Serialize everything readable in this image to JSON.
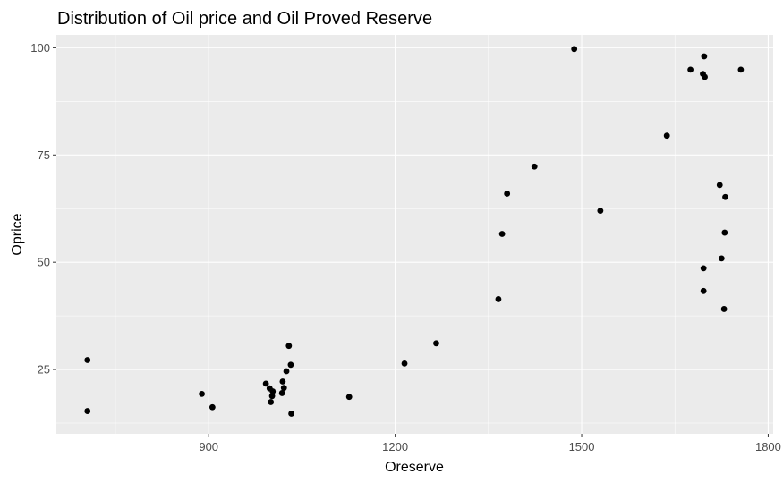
{
  "chart_data": {
    "type": "scatter",
    "title": "Distribution of Oil price and Oil Proved Reserve",
    "xlabel": "Oreserve",
    "ylabel": "Oprice",
    "xlim": [
      655,
      1808
    ],
    "ylim": [
      10,
      103
    ],
    "x_ticks": [
      900,
      1200,
      1500,
      1800
    ],
    "y_ticks": [
      25,
      50,
      75,
      100
    ],
    "x_minor": [
      750,
      1050,
      1350,
      1650
    ],
    "y_minor": [
      12.5,
      37.5,
      62.5,
      87.5
    ],
    "grid": true,
    "legend": "none",
    "point_color": "#000000",
    "panel_background": "#ebebeb",
    "grid_color": "#ffffff",
    "points": [
      {
        "x": 705,
        "y": 27.2
      },
      {
        "x": 705,
        "y": 15.3
      },
      {
        "x": 889,
        "y": 19.3
      },
      {
        "x": 906,
        "y": 16.2
      },
      {
        "x": 992,
        "y": 21.7
      },
      {
        "x": 998,
        "y": 20.6
      },
      {
        "x": 1000,
        "y": 17.4
      },
      {
        "x": 1002,
        "y": 18.8
      },
      {
        "x": 1003,
        "y": 19.9
      },
      {
        "x": 1018,
        "y": 19.5
      },
      {
        "x": 1019,
        "y": 22.2
      },
      {
        "x": 1021,
        "y": 20.7
      },
      {
        "x": 1025,
        "y": 24.6
      },
      {
        "x": 1029,
        "y": 30.5
      },
      {
        "x": 1032,
        "y": 26.1
      },
      {
        "x": 1033,
        "y": 14.7
      },
      {
        "x": 1126,
        "y": 18.6
      },
      {
        "x": 1215,
        "y": 26.4
      },
      {
        "x": 1266,
        "y": 31.1
      },
      {
        "x": 1366,
        "y": 41.4
      },
      {
        "x": 1372,
        "y": 56.6
      },
      {
        "x": 1380,
        "y": 66.0
      },
      {
        "x": 1424,
        "y": 72.3
      },
      {
        "x": 1488,
        "y": 99.7
      },
      {
        "x": 1530,
        "y": 62.0
      },
      {
        "x": 1637,
        "y": 79.5
      },
      {
        "x": 1675,
        "y": 94.9
      },
      {
        "x": 1695,
        "y": 93.9
      },
      {
        "x": 1697,
        "y": 98.0
      },
      {
        "x": 1698,
        "y": 93.2
      },
      {
        "x": 1696,
        "y": 48.6
      },
      {
        "x": 1696,
        "y": 43.3
      },
      {
        "x": 1722,
        "y": 68.0
      },
      {
        "x": 1725,
        "y": 50.9
      },
      {
        "x": 1730,
        "y": 56.9
      },
      {
        "x": 1731,
        "y": 65.2
      },
      {
        "x": 1729,
        "y": 39.1
      },
      {
        "x": 1756,
        "y": 94.9
      }
    ]
  }
}
